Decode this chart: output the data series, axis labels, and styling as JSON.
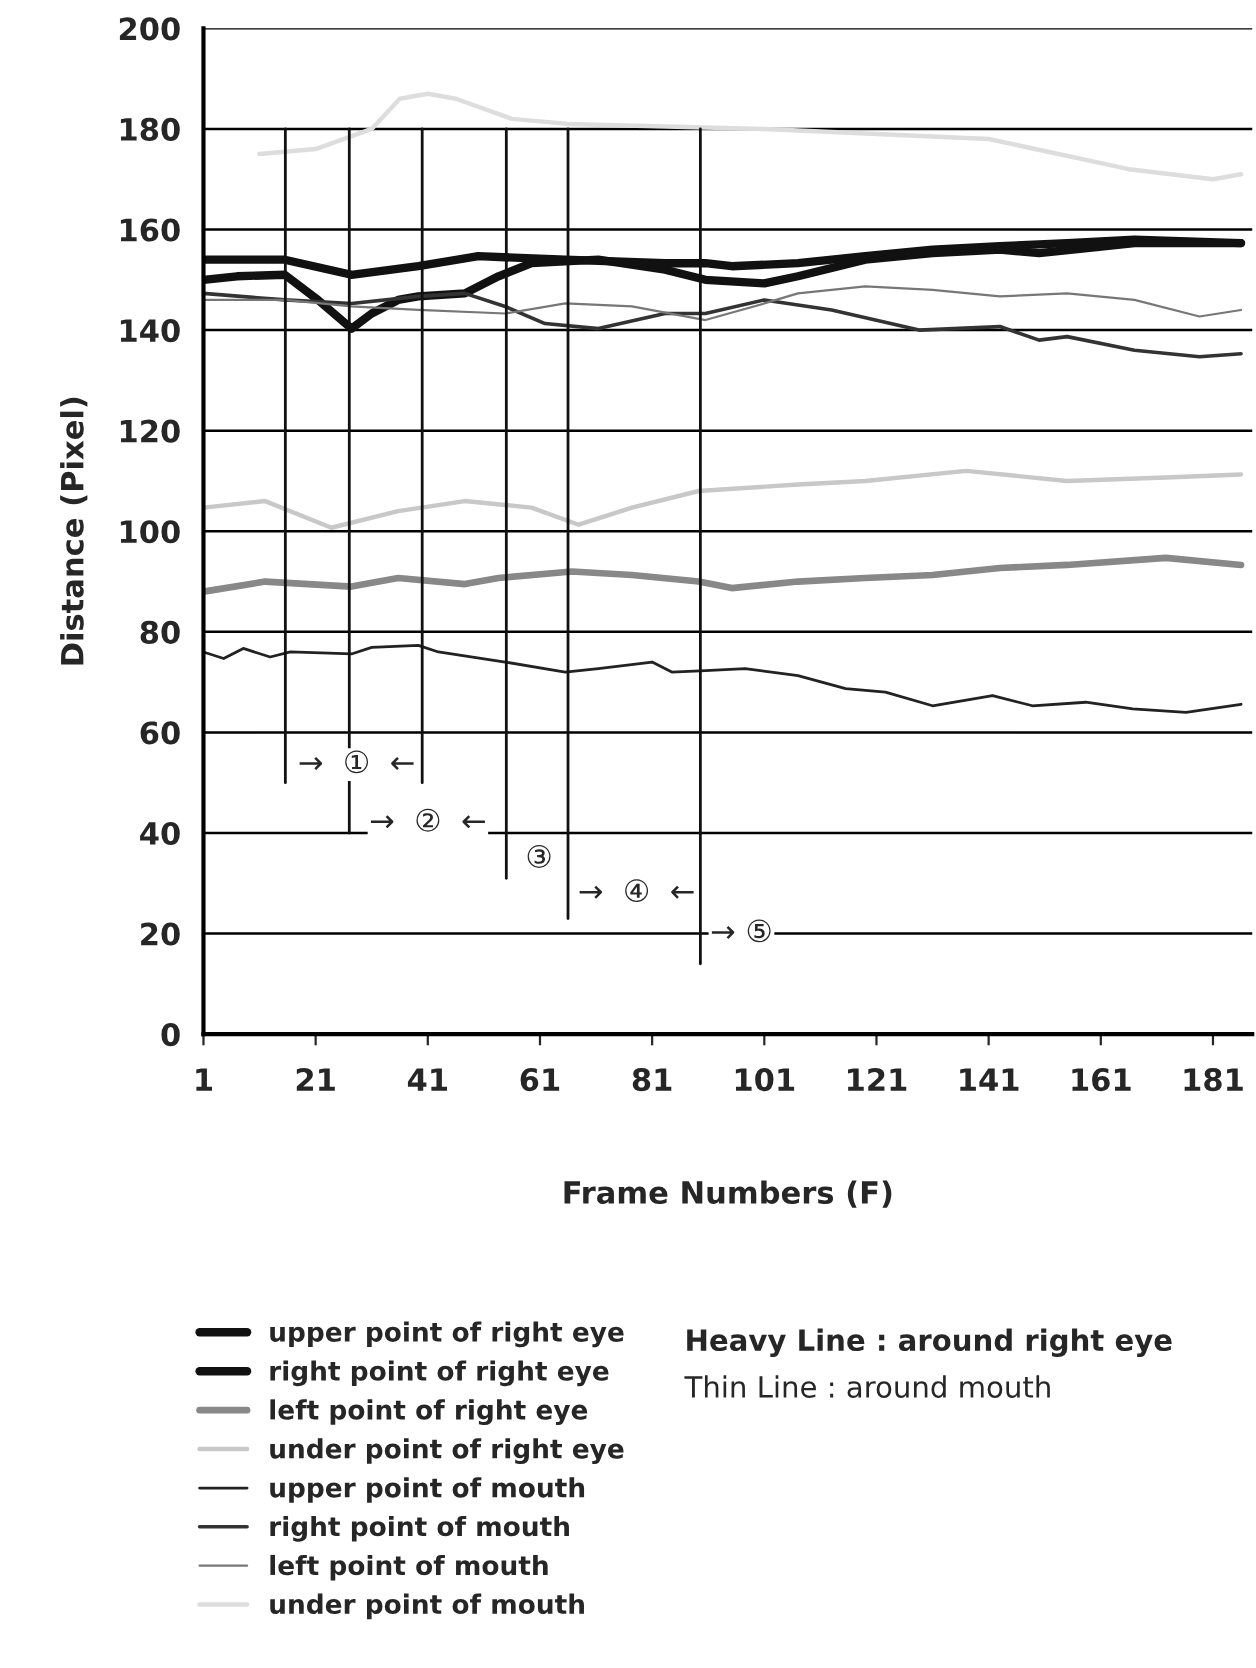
{
  "chart_data": {
    "type": "line",
    "xlabel": "Frame Numbers (F)",
    "ylabel": "Distance (Pixel)",
    "xlim": [
      1,
      188
    ],
    "xticks": [
      1,
      21,
      41,
      61,
      81,
      101,
      121,
      141,
      161,
      181
    ],
    "ylim": [
      0,
      200
    ],
    "yticks": [
      0,
      20,
      40,
      60,
      80,
      100,
      120,
      140,
      160,
      180,
      200
    ],
    "grid": "y",
    "legend": "bottom",
    "series": [
      {
        "name": "upper point of right eye",
        "color": "#111111",
        "x": [
          1,
          7,
          15.5,
          21.4,
          27.4,
          31,
          35.7,
          39.3,
          47.6,
          53.6,
          59.5,
          71.4,
          83.3,
          90.5,
          101,
          107,
          119,
          131,
          143,
          150,
          167,
          186
        ],
        "values": [
          150,
          150.7,
          151,
          146,
          140.3,
          143.3,
          146,
          146.7,
          147.3,
          150.7,
          153.3,
          154,
          152,
          150,
          149.3,
          150.7,
          154,
          155.3,
          156,
          155.3,
          157.3,
          157.3
        ]
      },
      {
        "name": "right point of right eye",
        "color": "#111111",
        "x": [
          1,
          15.5,
          27.4,
          39.3,
          50,
          65.5,
          83.3,
          90.5,
          95.2,
          107,
          119,
          131,
          143,
          155,
          167,
          186
        ],
        "values": [
          154,
          154,
          151,
          152.7,
          154.7,
          154,
          153.3,
          153.3,
          152.7,
          153.3,
          154.7,
          156,
          156.7,
          157.3,
          158,
          157.3
        ]
      },
      {
        "name": "left point of right eye",
        "color": "#888888",
        "x": [
          1,
          12,
          27.4,
          35.7,
          47.6,
          53.6,
          66.7,
          77.4,
          89.3,
          95.2,
          107,
          119,
          131,
          143,
          155,
          172.6,
          186
        ],
        "values": [
          88,
          90,
          89,
          90.7,
          89.5,
          90.7,
          92,
          91.3,
          90,
          88.7,
          90,
          90.7,
          91.3,
          92.7,
          93.3,
          94.7,
          93.3
        ]
      },
      {
        "name": "under point of right eye",
        "color": "#c8c8c8",
        "x": [
          1,
          12,
          23.8,
          35.7,
          47.6,
          59.5,
          67.9,
          77.4,
          89.3,
          107,
          119,
          137,
          155,
          172.6,
          186
        ],
        "values": [
          104.7,
          106,
          100.7,
          104,
          106,
          104.7,
          101.3,
          104.7,
          108,
          109.3,
          110,
          112,
          110,
          110.7,
          111.3
        ]
      },
      {
        "name": "upper point of mouth",
        "color": "#222222",
        "x": [
          1,
          4.6,
          8.1,
          12.9,
          16.5,
          27.4,
          31,
          39.3,
          42.9,
          54.8,
          65.5,
          71.4,
          81,
          84.5,
          90.5,
          97.6,
          107,
          115.5,
          122.6,
          131,
          141.7,
          148.8,
          158.3,
          166.7,
          176.2,
          186
        ],
        "values": [
          76,
          74.7,
          76.7,
          75,
          76,
          75.6,
          76.9,
          77.3,
          76,
          74,
          72,
          72.7,
          74,
          72,
          72.3,
          72.7,
          71.3,
          68.7,
          68,
          65.3,
          67.3,
          65.3,
          66,
          64.7,
          64,
          65.6
        ]
      },
      {
        "name": "right point of mouth",
        "color": "#333333",
        "x": [
          1,
          15.5,
          27.4,
          39.3,
          47.6,
          54.8,
          61.9,
          71.4,
          83.3,
          90.5,
          101,
          113,
          128.6,
          143,
          150,
          155,
          167,
          178.6,
          186
        ],
        "values": [
          147.3,
          146,
          145.3,
          146.7,
          147.3,
          144.7,
          141.3,
          140.3,
          143.3,
          143.3,
          146,
          144,
          140,
          140.7,
          138,
          138.7,
          136,
          134.7,
          135.3
        ]
      },
      {
        "name": "left point of mouth",
        "color": "#777777",
        "x": [
          1,
          15.5,
          27.4,
          39.3,
          54.8,
          65.5,
          77.4,
          90.5,
          101,
          107,
          119,
          131,
          143,
          155,
          167,
          178.6,
          186
        ],
        "values": [
          146,
          146,
          144.7,
          144,
          143.3,
          145.3,
          144.7,
          142,
          145.3,
          147.3,
          148.7,
          148,
          146.7,
          147.3,
          146,
          142.7,
          144
        ]
      },
      {
        "name": "under point of mouth",
        "color": "#dddddd",
        "x": [
          11,
          21,
          31,
          36,
          41,
          46,
          56,
          66,
          101,
          141,
          166,
          181,
          186
        ],
        "values": [
          175,
          176,
          180,
          186,
          187,
          186,
          182,
          181,
          180,
          178,
          172,
          170,
          171
        ]
      },
      {
        "color": "#111111",
        "x": [
          15.6,
          15.6
        ],
        "values": [
          180,
          50
        ]
      },
      {
        "color": "#111111",
        "x": [
          27,
          27
        ],
        "values": [
          180,
          40
        ]
      },
      {
        "color": "#111111",
        "x": [
          40,
          40
        ],
        "values": [
          180,
          50
        ]
      },
      {
        "color": "#111111",
        "x": [
          55,
          55
        ],
        "values": [
          180,
          31
        ]
      },
      {
        "color": "#111111",
        "x": [
          66,
          66
        ],
        "values": [
          180,
          23
        ]
      },
      {
        "color": "#111111",
        "x": [
          89.6,
          89.6
        ],
        "values": [
          180,
          14
        ]
      }
    ],
    "annotations": [
      "→  ①  ←",
      "→  ②  ←",
      "③",
      "→  ④  ←",
      "→ ⑤",
      "Heavy Line : around right eye",
      "Thin Line : around mouth"
    ]
  }
}
